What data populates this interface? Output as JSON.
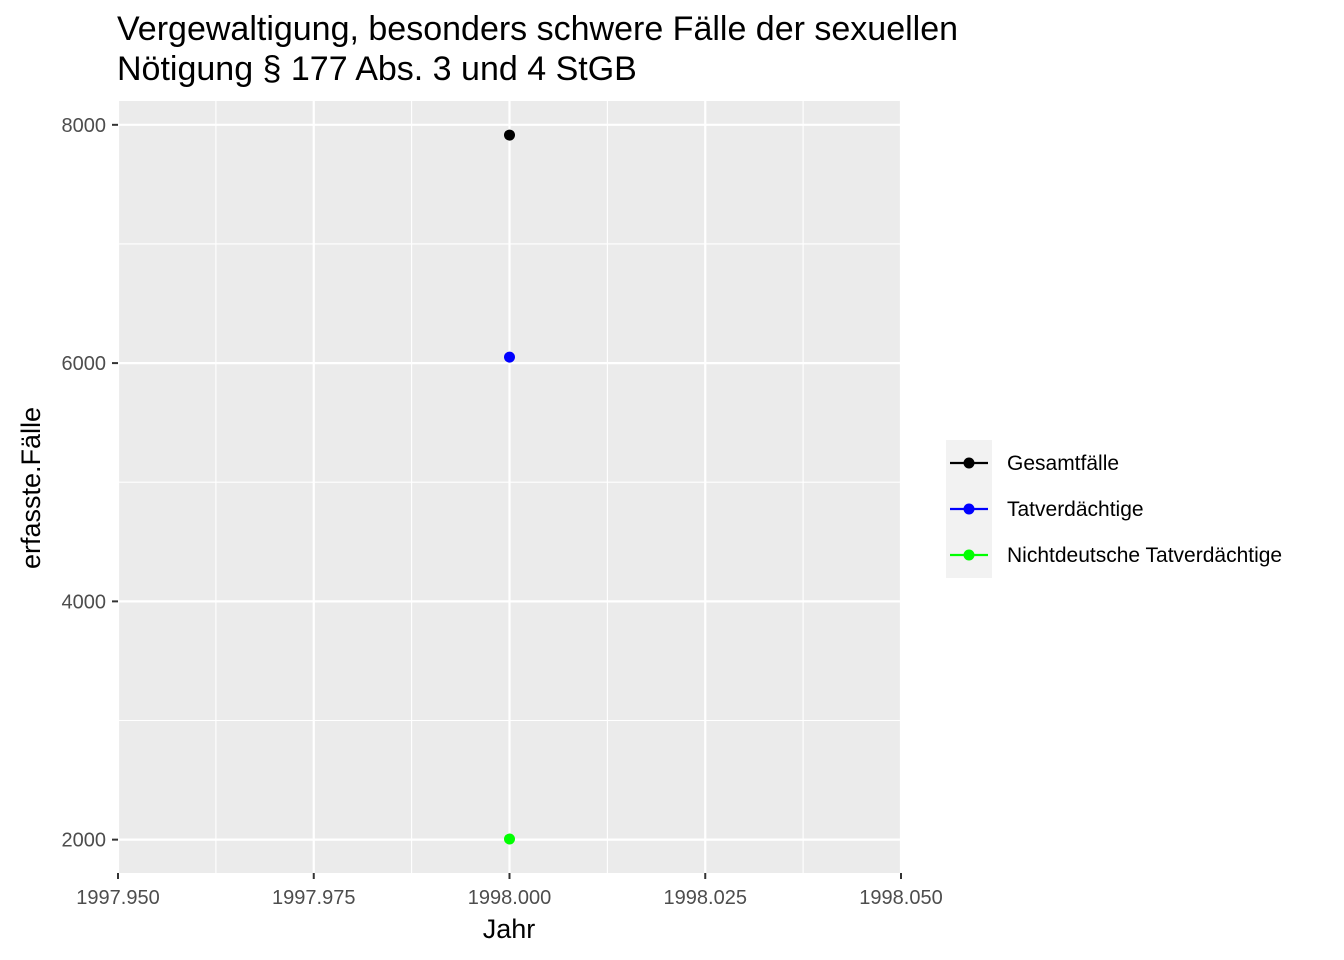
{
  "chart_data": {
    "type": "scatter",
    "title": "Vergewaltigung, besonders schwere Fälle der sexuellen Nötigung § 177 Abs. 3 und 4 StGB",
    "title_lines": [
      "Vergewaltigung, besonders schwere Fälle der sexuellen",
      "Nötigung § 177 Abs. 3 und 4 StGB"
    ],
    "xlabel": "Jahr",
    "ylabel": "erfasste.Fälle",
    "xlim": [
      1997.95,
      1998.05
    ],
    "ylim": [
      1720,
      8200
    ],
    "x_ticks": [
      1997.95,
      1997.975,
      1998.0,
      1998.025,
      1998.05
    ],
    "x_tick_labels": [
      "1997.950",
      "1997.975",
      "1998.000",
      "1998.025",
      "1998.050"
    ],
    "y_ticks": [
      2000,
      4000,
      6000,
      8000
    ],
    "y_tick_labels": [
      "2000",
      "4000",
      "6000",
      "8000"
    ],
    "grid": true,
    "legend_position": "right",
    "series": [
      {
        "name": "Gesamtfälle",
        "color": "#000000",
        "x": [
          1998.0
        ],
        "y": [
          7914
        ]
      },
      {
        "name": "Tatverdächtige",
        "color": "#0000ff",
        "x": [
          1998.0
        ],
        "y": [
          6050
        ]
      },
      {
        "name": "Nichtdeutsche Tatverdächtige",
        "color": "#00ff00",
        "x": [
          1998.0
        ],
        "y": [
          2005
        ]
      }
    ]
  },
  "colors": {
    "panel_background": "#ebebeb",
    "grid_major": "#ffffff",
    "legend_key_background": "#f2f2f2"
  }
}
